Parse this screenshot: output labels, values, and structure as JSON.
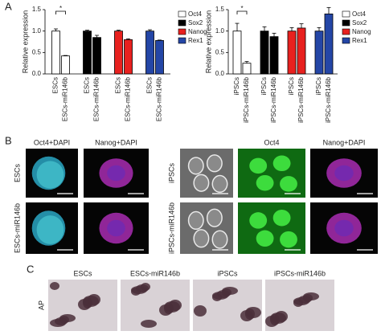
{
  "panel_labels": [
    "A",
    "B",
    "C"
  ],
  "chart_data": [
    {
      "type": "bar",
      "ylabel": "Relative expression",
      "annotation": "*",
      "categories": [
        "ESCs",
        "ESCs-miR146b"
      ],
      "series": [
        {
          "name": "Oct4",
          "color": "#ffffff",
          "values": [
            1.0,
            0.42
          ],
          "errors": [
            0.05,
            0.01
          ]
        },
        {
          "name": "Sox2",
          "color": "#000000",
          "values": [
            1.0,
            0.85
          ],
          "errors": [
            0.02,
            0.05
          ]
        },
        {
          "name": "Nanog",
          "color": "#e8211f",
          "values": [
            1.0,
            0.8
          ],
          "errors": [
            0.02,
            0.02
          ]
        },
        {
          "name": "Rex1",
          "color": "#2446a6",
          "values": [
            1.0,
            0.78
          ],
          "errors": [
            0.03,
            0.01
          ]
        }
      ],
      "ylim": [
        0,
        1.5
      ],
      "yticks": [
        {
          "value": 0,
          "label": "0.0"
        },
        {
          "value": 0.5,
          "label": "0.5"
        },
        {
          "value": 1,
          "label": "1.0"
        },
        {
          "value": 1.5,
          "label": "1.5"
        }
      ],
      "legend": "right"
    },
    {
      "type": "bar",
      "ylabel": "Relative expression",
      "annotation": "*",
      "categories": [
        "iPSCs",
        "iPSCs-miR146b"
      ],
      "series": [
        {
          "name": "Oct4",
          "color": "#ffffff",
          "values": [
            1.0,
            0.25
          ],
          "errors": [
            0.18,
            0.04
          ]
        },
        {
          "name": "Sox2",
          "color": "#000000",
          "values": [
            1.0,
            0.87
          ],
          "errors": [
            0.1,
            0.08
          ]
        },
        {
          "name": "Nanog",
          "color": "#e8211f",
          "values": [
            1.0,
            1.07
          ],
          "errors": [
            0.08,
            0.1
          ]
        },
        {
          "name": "Rex1",
          "color": "#2446a6",
          "values": [
            1.0,
            1.4
          ],
          "errors": [
            0.08,
            0.15
          ]
        }
      ],
      "ylim": [
        0,
        1.5
      ],
      "yticks": [
        {
          "value": 0,
          "label": "0.0"
        },
        {
          "value": 0.5,
          "label": "0.5"
        },
        {
          "value": 1,
          "label": "1.0"
        },
        {
          "value": 1.5,
          "label": "1.5"
        }
      ],
      "legend": "right"
    }
  ],
  "panel_b": {
    "left_headers": [
      "Oct4+DAPI",
      "Nanog+DAPI"
    ],
    "left_rows": [
      "ESCs",
      "ESCs-miR146b"
    ],
    "right_headers": [
      "Oct4",
      "Nanog+DAPI"
    ],
    "right_rows": [
      "iPSCs",
      "iPSCs-miR146b"
    ]
  },
  "panel_c": {
    "headers": [
      "ESCs",
      "ESCs-miR146b",
      "iPSCs",
      "iPSCs-miR146b"
    ],
    "row_label": "AP"
  }
}
